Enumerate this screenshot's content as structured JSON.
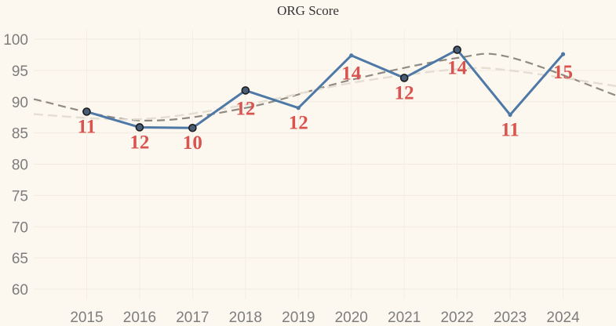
{
  "chart_data": {
    "type": "line",
    "title": "ORG Score",
    "xlabel": "",
    "ylabel": "",
    "x": [
      "2015",
      "2016",
      "2017",
      "2018",
      "2019",
      "2020",
      "2021",
      "2022",
      "2023",
      "2024"
    ],
    "series": [
      {
        "values": [
          88.4,
          85.9,
          85.8,
          91.8,
          89.0,
          97.4,
          93.8,
          98.3,
          87.9,
          97.6
        ],
        "labels": [
          "11",
          "12",
          "10",
          "12",
          "12",
          "14",
          "12",
          "14",
          "11",
          "15"
        ],
        "markers": [
          true,
          true,
          true,
          true,
          false,
          false,
          true,
          true,
          false,
          false
        ]
      }
    ],
    "trend_lines": [
      {
        "style": "dashed-dark",
        "points_x": [
          2014.0,
          2016.0,
          2018.0,
          2020.0,
          2022.0,
          2023.0,
          2025.0
        ],
        "values": [
          90.4,
          87.0,
          89.0,
          93.5,
          97.0,
          97.1,
          91.0
        ]
      },
      {
        "style": "dashed-light",
        "points_x": [
          2014.0,
          2016.0,
          2018.0,
          2020.0,
          2022.0,
          2023.0,
          2025.0
        ],
        "values": [
          88.0,
          87.2,
          89.5,
          93.0,
          95.2,
          95.0,
          92.5
        ]
      }
    ],
    "yticks": [
      60,
      65,
      70,
      75,
      80,
      85,
      90,
      95,
      100
    ],
    "ylim": [
      58,
      101.5
    ],
    "xlim": [
      2014.0,
      2025.0
    ],
    "grid": true,
    "colors": {
      "line": "#4e79a7",
      "label": "#d9534f",
      "trend_dark": "#8f8a82",
      "trend_light": "#e4ddd1",
      "background": "#fdf8ef"
    }
  }
}
